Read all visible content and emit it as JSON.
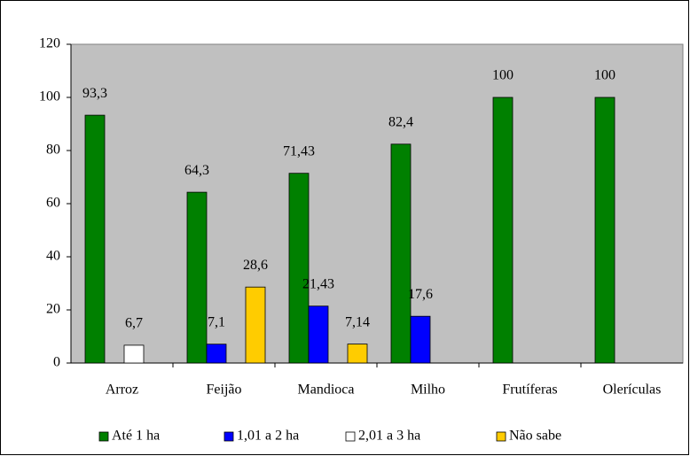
{
  "chart_data": {
    "type": "bar",
    "categories": [
      "Arroz",
      "Feijão",
      "Mandioca",
      "Milho",
      "Frutíferas",
      "Olerículas"
    ],
    "series": [
      {
        "name": "Até 1 ha",
        "color": "#008000",
        "values": [
          93.3,
          64.3,
          71.43,
          82.4,
          100,
          100
        ],
        "value_labels": [
          "93,3",
          "64,3",
          "71,43",
          "82,4",
          "100",
          "100"
        ]
      },
      {
        "name": "1,01 a 2 ha",
        "color": "#0000ff",
        "values": [
          null,
          7.1,
          21.43,
          17.6,
          null,
          null
        ],
        "value_labels": [
          null,
          "7,1",
          "21,43",
          "17,6",
          null,
          null
        ]
      },
      {
        "name": "2,01 a 3 ha",
        "color": "#ffffff",
        "values": [
          6.7,
          null,
          null,
          null,
          null,
          null
        ],
        "value_labels": [
          "6,7",
          null,
          null,
          null,
          null,
          null
        ]
      },
      {
        "name": "Não sabe",
        "color": "#ffcc00",
        "values": [
          null,
          28.6,
          7.14,
          null,
          null,
          null
        ],
        "value_labels": [
          null,
          "28,6",
          "7,14",
          null,
          null,
          null
        ]
      }
    ],
    "ylim": [
      0,
      120
    ],
    "yticks": [
      0,
      20,
      40,
      60,
      80,
      100,
      120
    ],
    "legend": "bottom"
  }
}
